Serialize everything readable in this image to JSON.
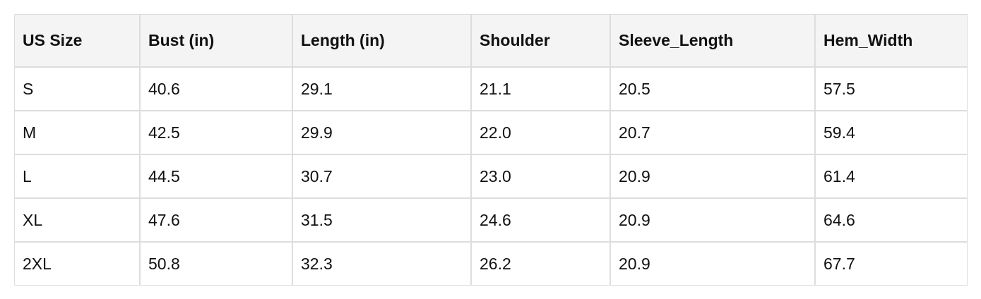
{
  "table": {
    "columns": [
      "US Size",
      "Bust (in)",
      "Length (in)",
      "Shoulder",
      "Sleeve_Length",
      "Hem_Width"
    ],
    "rows": [
      [
        "S",
        "40.6",
        "29.1",
        "21.1",
        "20.5",
        "57.5"
      ],
      [
        "M",
        "42.5",
        "29.9",
        "22.0",
        "20.7",
        "59.4"
      ],
      [
        "L",
        "44.5",
        "30.7",
        "23.0",
        "20.9",
        "61.4"
      ],
      [
        "XL",
        "47.6",
        "31.5",
        "24.6",
        "20.9",
        "64.6"
      ],
      [
        "2XL",
        "50.8",
        "32.3",
        "26.2",
        "20.9",
        "67.7"
      ]
    ]
  }
}
